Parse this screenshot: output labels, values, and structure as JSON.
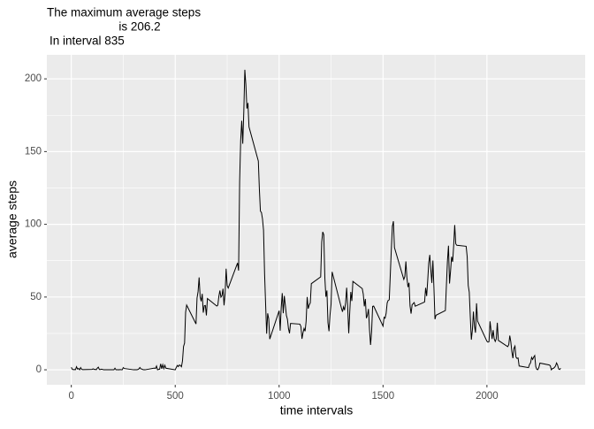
{
  "chart_data": {
    "type": "line",
    "title": [
      "The maximum average steps",
      "is 206.2",
      "In interval 835"
    ],
    "xlabel": "time intervals",
    "ylabel": "average steps",
    "color": "#000000",
    "grid": true,
    "xlim": [
      -117.75,
      2472.75
    ],
    "xticks": [
      0,
      500,
      1000,
      1500,
      2000
    ],
    "ylim": [
      -10.3,
      216.5
    ],
    "yticks": [
      0,
      50,
      100,
      150,
      200
    ],
    "x": [
      0,
      5,
      10,
      15,
      20,
      25,
      30,
      35,
      40,
      45,
      50,
      55,
      100,
      105,
      110,
      115,
      120,
      125,
      130,
      135,
      140,
      145,
      150,
      155,
      200,
      205,
      210,
      215,
      220,
      225,
      230,
      235,
      240,
      245,
      250,
      255,
      300,
      305,
      310,
      315,
      320,
      325,
      330,
      335,
      340,
      345,
      350,
      355,
      400,
      405,
      410,
      415,
      420,
      425,
      430,
      435,
      440,
      445,
      450,
      455,
      500,
      505,
      510,
      515,
      520,
      525,
      530,
      535,
      540,
      545,
      550,
      555,
      600,
      605,
      610,
      615,
      620,
      625,
      630,
      635,
      640,
      645,
      650,
      655,
      700,
      705,
      710,
      715,
      720,
      725,
      730,
      735,
      740,
      745,
      750,
      755,
      800,
      805,
      810,
      815,
      820,
      825,
      830,
      835,
      840,
      845,
      850,
      855,
      900,
      905,
      910,
      915,
      920,
      925,
      930,
      935,
      940,
      945,
      950,
      955,
      1000,
      1005,
      1010,
      1015,
      1020,
      1025,
      1030,
      1035,
      1040,
      1045,
      1050,
      1055,
      1100,
      1105,
      1110,
      1115,
      1120,
      1125,
      1130,
      1135,
      1140,
      1145,
      1150,
      1155,
      1200,
      1205,
      1210,
      1215,
      1220,
      1225,
      1230,
      1235,
      1240,
      1245,
      1250,
      1255,
      1300,
      1305,
      1310,
      1315,
      1320,
      1325,
      1330,
      1335,
      1340,
      1345,
      1350,
      1355,
      1400,
      1405,
      1410,
      1415,
      1420,
      1425,
      1430,
      1435,
      1440,
      1445,
      1450,
      1455,
      1500,
      1505,
      1510,
      1515,
      1520,
      1525,
      1530,
      1535,
      1540,
      1545,
      1550,
      1555,
      1600,
      1605,
      1610,
      1615,
      1620,
      1625,
      1630,
      1635,
      1640,
      1645,
      1650,
      1655,
      1700,
      1705,
      1710,
      1715,
      1720,
      1725,
      1730,
      1735,
      1740,
      1745,
      1750,
      1755,
      1800,
      1805,
      1810,
      1815,
      1820,
      1825,
      1830,
      1835,
      1840,
      1845,
      1850,
      1855,
      1900,
      1905,
      1910,
      1915,
      1920,
      1925,
      1930,
      1935,
      1940,
      1945,
      1950,
      1955,
      2000,
      2005,
      2010,
      2015,
      2020,
      2025,
      2030,
      2035,
      2040,
      2045,
      2050,
      2055,
      2100,
      2105,
      2110,
      2115,
      2120,
      2125,
      2130,
      2135,
      2140,
      2145,
      2150,
      2155,
      2200,
      2205,
      2210,
      2215,
      2220,
      2225,
      2230,
      2235,
      2240,
      2245,
      2250,
      2255,
      2300,
      2305,
      2310,
      2315,
      2320,
      2325,
      2330,
      2335,
      2340,
      2345,
      2350,
      2355
    ],
    "values": [
      1.7,
      0.3,
      0.1,
      0.2,
      0.1,
      2.1,
      0.5,
      0.9,
      0,
      1.5,
      0.3,
      0.1,
      0.3,
      0.7,
      0.2,
      0.3,
      0,
      1.1,
      1.8,
      0.2,
      0.2,
      0.4,
      0.3,
      0,
      0,
      0,
      1.1,
      0,
      0,
      0.1,
      0,
      0.2,
      0,
      0,
      1.5,
      0.9,
      0,
      0,
      0,
      0,
      0.2,
      0.6,
      1.6,
      0.6,
      0.5,
      0.1,
      0,
      0,
      1.2,
      0.9,
      2.6,
      0,
      0.3,
      0.4,
      4.1,
      0.7,
      3.5,
      0.8,
      3.1,
      1.1,
      0,
      1.6,
      3.0,
      2.2,
      3.3,
      3.0,
      2.1,
      6.1,
      16.0,
      18.3,
      39.5,
      44.5,
      31.5,
      49.3,
      53.8,
      63.5,
      50.0,
      47.1,
      52.2,
      39.3,
      44.0,
      44.2,
      37.4,
      49.0,
      43.8,
      44.4,
      50.5,
      54.5,
      49.9,
      51.0,
      55.7,
      44.3,
      52.3,
      69.5,
      57.8,
      56.2,
      73.4,
      68.2,
      129.4,
      157.5,
      171.2,
      155.4,
      177.3,
      206.2,
      195.9,
      179.6,
      183.4,
      167.0,
      143.5,
      124.0,
      109.1,
      108.1,
      103.7,
      96.0,
      66.2,
      45.2,
      24.8,
      38.8,
      35.0,
      21.1,
      40.6,
      26.9,
      42.4,
      52.7,
      38.9,
      50.8,
      44.3,
      37.4,
      34.7,
      28.3,
      25.1,
      31.9,
      31.4,
      29.7,
      21.3,
      25.5,
      28.4,
      26.5,
      33.4,
      50.0,
      42.0,
      44.6,
      46.0,
      59.2,
      63.9,
      87.7,
      94.8,
      92.8,
      63.4,
      50.2,
      54.5,
      32.4,
      26.5,
      37.7,
      45.1,
      67.3,
      42.3,
      39.9,
      43.3,
      41.0,
      46.2,
      56.4,
      42.8,
      25.1,
      40.0,
      53.5,
      47.3,
      60.8,
      55.8,
      52.0,
      43.6,
      48.7,
      35.5,
      37.5,
      41.8,
      27.5,
      17.1,
      26.1,
      43.6,
      43.8,
      30.0,
      36.1,
      35.5,
      38.8,
      46.0,
      47.8,
      48.1,
      65.3,
      82.9,
      98.7,
      102.1,
      84.0,
      62.1,
      64.1,
      74.5,
      63.2,
      56.9,
      59.8,
      43.9,
      38.6,
      44.7,
      45.5,
      46.2,
      43.7,
      46.6,
      56.3,
      50.7,
      61.2,
      73.4,
      79.0,
      68.9,
      59.7,
      75.1,
      56.5,
      34.8,
      37.5,
      40.7,
      58.0,
      74.7,
      85.3,
      59.3,
      67.8,
      77.7,
      74.2,
      85.3,
      99.5,
      86.6,
      85.6,
      84.9,
      77.8,
      58.0,
      53.4,
      36.3,
      20.7,
      27.4,
      40.0,
      30.2,
      25.5,
      45.7,
      33.5,
      19.6,
      19.0,
      19.3,
      33.3,
      26.8,
      21.2,
      27.3,
      21.3,
      19.5,
      21.3,
      32.3,
      20.2,
      15.9,
      17.2,
      23.5,
      19.2,
      12.5,
      8.0,
      14.7,
      16.3,
      8.7,
      7.8,
      8.1,
      2.6,
      1.5,
      3.7,
      4.8,
      8.5,
      7.1,
      8.7,
      9.8,
      2.2,
      0.3,
      0.1,
      1.6,
      4.6,
      3.3,
      2.8,
      0,
      0.8,
      1.0,
      1.6,
      2.6,
      4.7,
      3.3,
      0.6,
      0.2,
      1.1
    ]
  }
}
